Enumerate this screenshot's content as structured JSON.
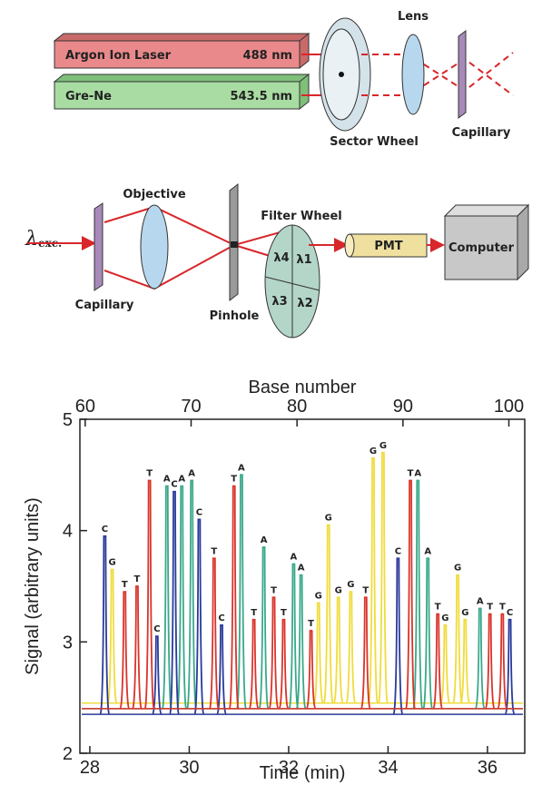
{
  "top_diagram": {
    "laser1": {
      "name": "Argon Ion Laser",
      "wavelength": "488 nm"
    },
    "laser2": {
      "name": "Gre-Ne",
      "wavelength": "543.5 nm"
    },
    "sector_wheel": "Sector Wheel",
    "lens": "Lens",
    "capillary": "Capillary"
  },
  "middle_diagram": {
    "excitation": "λ",
    "excitation_sub": "exc.",
    "capillary": "Capillary",
    "objective": "Objective",
    "pinhole": "Pinhole",
    "filter_wheel": "Filter Wheel",
    "filters": [
      "λ4",
      "λ1",
      "λ3",
      "λ2"
    ],
    "pmt": "PMT",
    "computer": "Computer"
  },
  "chart_data": {
    "type": "peaks",
    "xlabel": "Time (min)",
    "ylabel": "Signal (arbitrary units)",
    "x2label": "Base number",
    "xlim": [
      27.8,
      36.75
    ],
    "xticks": [
      28,
      30,
      32,
      34,
      36
    ],
    "x2lim": [
      59.5,
      101.5
    ],
    "x2ticks": [
      60,
      70,
      80,
      90,
      100
    ],
    "ylim": [
      2,
      5
    ],
    "yticks": [
      2,
      3,
      4,
      5
    ],
    "series": [
      {
        "name": "G",
        "color": "#f0dc3c",
        "baseline": 2.45,
        "x": [
          28.45,
          32.6,
          32.8,
          33.0,
          33.25,
          33.7,
          33.9,
          35.15,
          35.4,
          35.55
        ],
        "values": [
          3.65,
          3.35,
          4.05,
          3.4,
          3.45,
          4.65,
          4.7,
          3.15,
          3.6,
          3.2
        ]
      },
      {
        "name": "A",
        "color": "#3aa88a",
        "baseline": 2.4,
        "x": [
          29.55,
          29.85,
          30.05,
          31.05,
          31.5,
          32.1,
          32.25,
          34.6,
          34.8,
          35.85
        ],
        "values": [
          4.4,
          4.4,
          4.45,
          4.5,
          3.85,
          3.7,
          3.6,
          4.45,
          3.75,
          3.3
        ]
      },
      {
        "name": "C",
        "color": "#2a3a9a",
        "baseline": 2.35,
        "x": [
          28.3,
          29.35,
          29.7,
          30.2,
          30.65,
          34.2,
          36.45
        ],
        "values": [
          3.95,
          3.05,
          4.35,
          4.1,
          3.15,
          3.75,
          3.2
        ]
      },
      {
        "name": "T",
        "color": "#d9342b",
        "baseline": 2.4,
        "x": [
          28.7,
          28.95,
          29.2,
          30.5,
          30.9,
          31.3,
          31.7,
          31.9,
          32.45,
          33.55,
          34.45,
          35.0,
          36.05,
          36.3
        ],
        "values": [
          3.45,
          3.5,
          4.45,
          3.75,
          4.4,
          3.2,
          3.4,
          3.2,
          3.1,
          3.4,
          4.45,
          3.25,
          3.25,
          3.25
        ]
      }
    ]
  }
}
